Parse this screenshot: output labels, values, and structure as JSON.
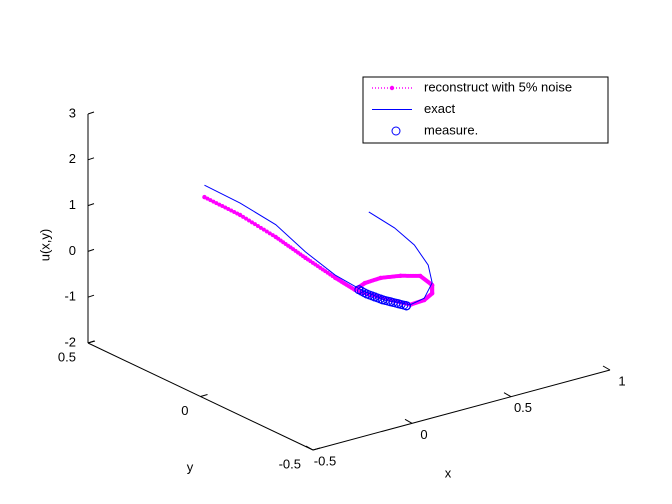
{
  "chart_data": {
    "type": "line3d",
    "xlabel": "x",
    "ylabel": "y",
    "zlabel": "u(x,y)",
    "xlim": [
      -0.5,
      1
    ],
    "ylim": [
      -0.5,
      0.5
    ],
    "zlim": [
      -2,
      3
    ],
    "xticks": [
      -0.5,
      0,
      0.5,
      1
    ],
    "yticks": [
      -0.5,
      0,
      0.5
    ],
    "zticks": [
      -2,
      -1,
      0,
      1,
      2,
      3
    ],
    "legend": "upper-right",
    "series": [
      {
        "name": "reconstruct with 5% noise",
        "color": "#ff00ff",
        "line": "dotted",
        "marker": "dot",
        "x": [
          -0.48,
          -0.3,
          -0.12,
          0.03,
          0.18,
          0.28,
          0.33,
          0.41,
          0.51,
          0.61,
          0.67,
          0.67,
          0.63,
          0.56,
          0.46,
          0.36,
          0.3
        ],
        "y": [
          0,
          0,
          0,
          0,
          0,
          0,
          0,
          0,
          0,
          0,
          0,
          0,
          0,
          0,
          0,
          0,
          0
        ],
        "z": [
          2.33,
          1.73,
          1.04,
          0.41,
          -0.2,
          -0.58,
          -0.49,
          -0.47,
          -0.54,
          -0.66,
          -0.93,
          -1.11,
          -1.21,
          -1.23,
          -1.01,
          -0.78,
          -0.64
        ]
      },
      {
        "name": "exact",
        "color": "#0000ff",
        "line": "solid",
        "marker": "none",
        "x": [
          -0.48,
          -0.3,
          -0.12,
          0.03,
          0.18,
          0.31,
          0.43,
          0.56,
          0.63,
          0.67,
          0.65,
          0.58,
          0.48,
          0.35
        ],
        "y": [
          0,
          0,
          0,
          0,
          0,
          0,
          0,
          0,
          0,
          0,
          0,
          0,
          0,
          0
        ],
        "z": [
          2.59,
          1.99,
          1.31,
          0.54,
          -0.14,
          -0.61,
          -0.98,
          -1.23,
          -1.17,
          -0.88,
          -0.47,
          0.05,
          0.54,
          1.04
        ]
      },
      {
        "name": "measure.",
        "color": "#0000ff",
        "line": "none",
        "marker": "circle",
        "x": [
          0.3,
          0.34,
          0.38,
          0.42,
          0.46,
          0.5,
          0.54
        ],
        "y": [
          0,
          0,
          0,
          0,
          0,
          0,
          0
        ],
        "z": [
          -0.6,
          -0.74,
          -0.85,
          -0.96,
          -1.05,
          -1.14,
          -1.23
        ]
      }
    ]
  }
}
